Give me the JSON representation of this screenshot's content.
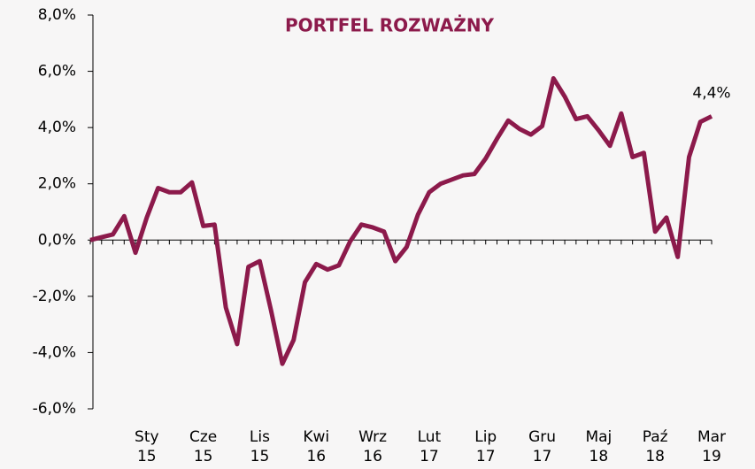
{
  "chart_data": {
    "type": "line",
    "title": "PORTFEL ROZWAŻNY",
    "categories": [
      null,
      null,
      null,
      null,
      null,
      "Sty 15",
      null,
      null,
      null,
      null,
      "Cze 15",
      null,
      null,
      null,
      null,
      "Lis 15",
      null,
      null,
      null,
      null,
      "Kwi 16",
      null,
      null,
      null,
      null,
      "Wrz 16",
      null,
      null,
      null,
      null,
      "Lut 17",
      null,
      null,
      null,
      null,
      "Lip 17",
      null,
      null,
      null,
      null,
      "Gru 17",
      null,
      null,
      null,
      null,
      "Maj 18",
      null,
      null,
      null,
      null,
      "Paź 18",
      null,
      null,
      null,
      null,
      "Mar 19"
    ],
    "series": [
      {
        "name": "PORTFEL ROZWAŻNY",
        "color": "#8c1a4b",
        "values": [
          0,
          0.1,
          0.2,
          0.85,
          -0.45,
          0.8,
          1.85,
          1.7,
          1.7,
          2.05,
          0.5,
          0.55,
          -2.4,
          -3.7,
          -0.95,
          -0.75,
          -2.5,
          -4.4,
          -3.55,
          -1.5,
          -0.85,
          -1.05,
          -0.9,
          -0.05,
          0.55,
          0.45,
          0.3,
          -0.75,
          -0.25,
          0.9,
          1.7,
          2.0,
          2.15,
          2.3,
          2.35,
          2.9,
          3.6,
          4.25,
          3.95,
          3.75,
          4.05,
          5.75,
          5.1,
          4.3,
          4.4,
          3.9,
          3.35,
          4.5,
          2.95,
          3.1,
          0.3,
          0.8,
          -0.6,
          2.95,
          4.2,
          4.4
        ],
        "value_labels": [
          null,
          null,
          null,
          null,
          null,
          null,
          null,
          null,
          null,
          null,
          null,
          null,
          null,
          null,
          null,
          null,
          null,
          null,
          null,
          null,
          null,
          null,
          null,
          null,
          null,
          null,
          null,
          null,
          null,
          null,
          null,
          null,
          null,
          null,
          null,
          null,
          null,
          null,
          null,
          null,
          null,
          null,
          null,
          null,
          null,
          null,
          null,
          null,
          null,
          null,
          null,
          null,
          null,
          null,
          null,
          "4,4%"
        ]
      }
    ],
    "ylim": [
      -6,
      8
    ],
    "yticks": [
      {
        "value": -6,
        "label": "-6,0%"
      },
      {
        "value": -4,
        "label": "-4,0%"
      },
      {
        "value": -2,
        "label": "-2,0%"
      },
      {
        "value": 0,
        "label": "0,0%"
      },
      {
        "value": 2,
        "label": "2,0%"
      },
      {
        "value": 4,
        "label": "4,0%"
      },
      {
        "value": 6,
        "label": "6,0%"
      },
      {
        "value": 8,
        "label": "8,0%"
      }
    ],
    "grid": false
  }
}
